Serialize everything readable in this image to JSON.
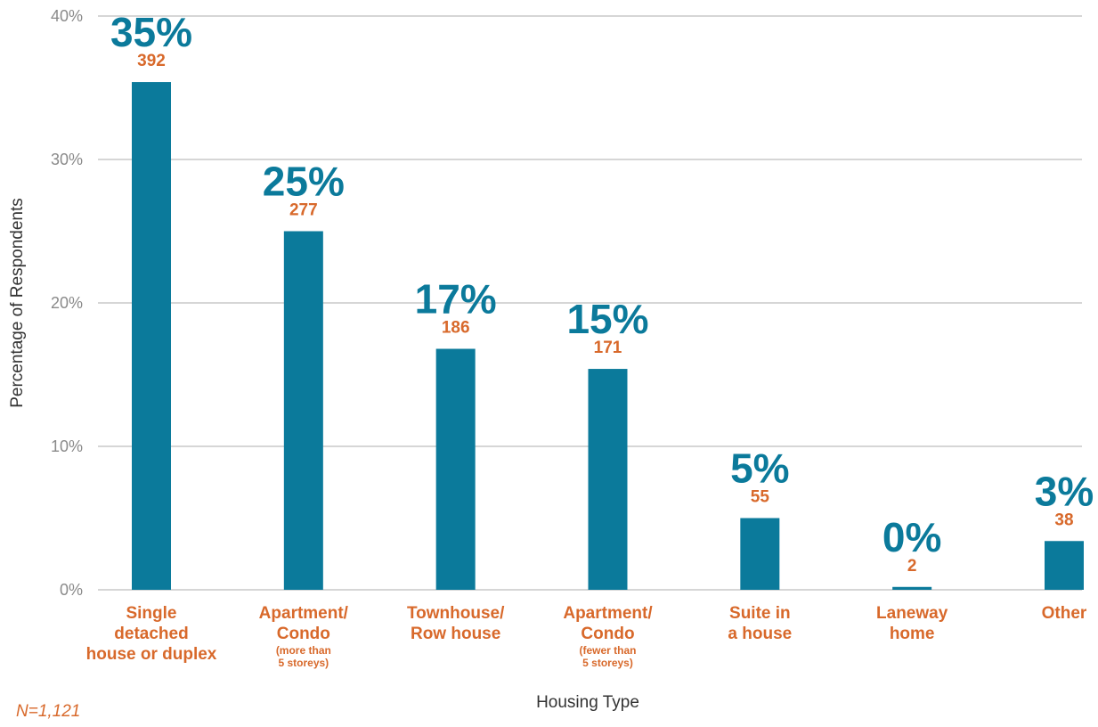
{
  "chart_data": {
    "type": "bar",
    "categories": [
      {
        "main": [
          "Single",
          "detached",
          "house or duplex"
        ],
        "sub": []
      },
      {
        "main": [
          "Apartment/",
          "Condo"
        ],
        "sub": [
          "(more than",
          "5 storeys)"
        ]
      },
      {
        "main": [
          "Townhouse/",
          "Row house"
        ],
        "sub": []
      },
      {
        "main": [
          "Apartment/",
          "Condo"
        ],
        "sub": [
          "(fewer than",
          "5 storeys)"
        ]
      },
      {
        "main": [
          "Suite in",
          "a house"
        ],
        "sub": []
      },
      {
        "main": [
          "Laneway",
          "home"
        ],
        "sub": []
      },
      {
        "main": [
          "Other"
        ],
        "sub": []
      }
    ],
    "values": [
      35.4,
      25.0,
      16.8,
      15.4,
      5.0,
      0.2,
      3.4
    ],
    "percent_labels": [
      "35%",
      "25%",
      "17%",
      "15%",
      "5%",
      "0%",
      "3%"
    ],
    "count_labels": [
      "392",
      "277",
      "186",
      "171",
      "55",
      "2",
      "38"
    ],
    "y_ticks": [
      "0%",
      "10%",
      "20%",
      "30%",
      "40%"
    ],
    "ylim": [
      0,
      40
    ],
    "xlabel": "Housing Type",
    "ylabel": "Percentage of Respondents",
    "grid": true,
    "colors": {
      "bar": "#0b7a9b",
      "count": "#d8692b",
      "category": "#d8692b"
    }
  },
  "note": "N=1,121"
}
